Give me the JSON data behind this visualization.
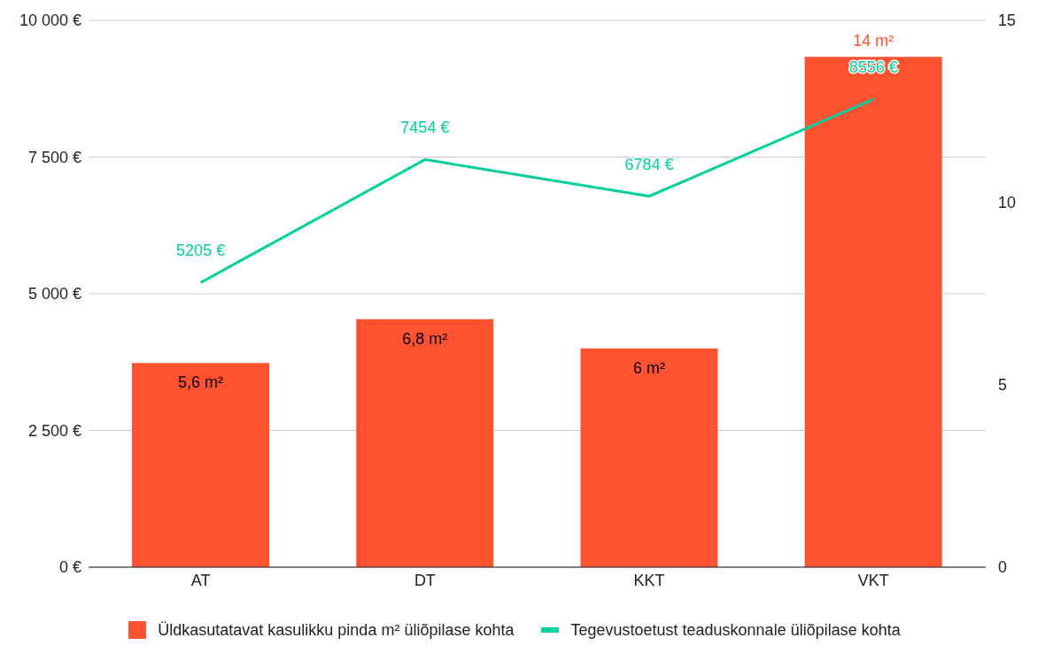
{
  "chart_data": {
    "type": "bar",
    "categories": [
      "AT",
      "DT",
      "KKT",
      "VKT"
    ],
    "series": [
      {
        "name": "Üldkasutatavat kasulikku pinda m² üliõpilase kohta",
        "axis": "y2",
        "color": "#ff5230",
        "values": [
          5.6,
          6.8,
          6,
          14
        ],
        "value_labels": [
          "5,6 m²",
          "6,8 m²",
          "6 m²",
          "14 m²"
        ]
      },
      {
        "name": "Tegevustoetust teaduskonnale üliõpilase kohta",
        "type": "line",
        "color": "#00d09c",
        "values": [
          5205,
          7454,
          6784,
          8556
        ],
        "value_labels": [
          "5205 €",
          "7454 €",
          "6784 €",
          "8556 €"
        ]
      }
    ],
    "ylim": [
      0,
      10000
    ],
    "yticks": [
      {
        "value": 0,
        "label": "0 €"
      },
      {
        "value": 2500,
        "label": "2 500 €"
      },
      {
        "value": 5000,
        "label": "5 000 €"
      },
      {
        "value": 7500,
        "label": "7 500 €"
      },
      {
        "value": 10000,
        "label": "10 000 €"
      }
    ],
    "y2lim": [
      0,
      15
    ],
    "y2ticks": [
      0,
      5,
      10,
      15
    ],
    "grid": "y",
    "legend": "bottom",
    "marker": "none"
  }
}
